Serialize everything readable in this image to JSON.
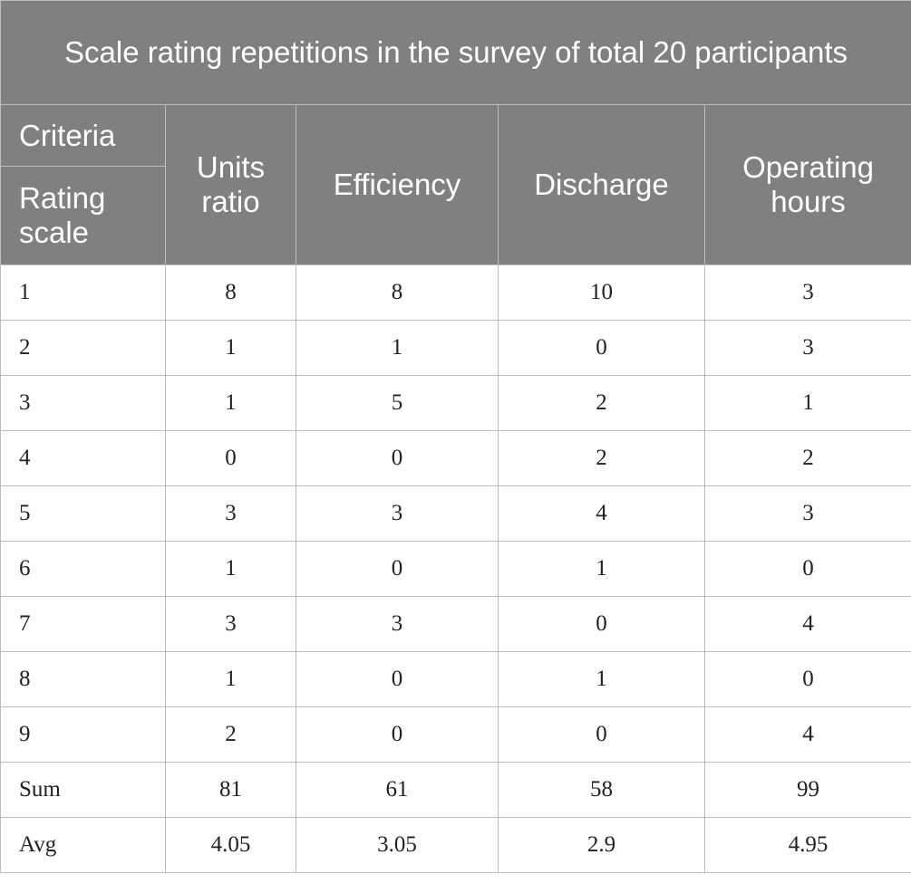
{
  "table": {
    "title": "Scale rating repetitions in the survey of total 20 participants",
    "corner_top": "Criteria",
    "corner_bottom": "Rating scale",
    "columns": [
      "Units ratio",
      "Efficiency",
      "Discharge",
      "Operating hours"
    ],
    "rows": [
      {
        "label": "1",
        "values": [
          "8",
          "8",
          "10",
          "3"
        ]
      },
      {
        "label": "2",
        "values": [
          "1",
          "1",
          "0",
          "3"
        ]
      },
      {
        "label": "3",
        "values": [
          "1",
          "5",
          "2",
          "1"
        ]
      },
      {
        "label": "4",
        "values": [
          "0",
          "0",
          "2",
          "2"
        ]
      },
      {
        "label": "5",
        "values": [
          "3",
          "3",
          "4",
          "3"
        ]
      },
      {
        "label": "6",
        "values": [
          "1",
          "0",
          "1",
          "0"
        ]
      },
      {
        "label": "7",
        "values": [
          "3",
          "3",
          "0",
          "4"
        ]
      },
      {
        "label": "8",
        "values": [
          "1",
          "0",
          "1",
          "0"
        ]
      },
      {
        "label": "9",
        "values": [
          "2",
          "0",
          "0",
          "4"
        ]
      },
      {
        "label": "Sum",
        "values": [
          "81",
          "61",
          "58",
          "99"
        ]
      },
      {
        "label": "Avg",
        "values": [
          "4.05",
          "3.05",
          "2.9",
          "4.95"
        ]
      }
    ]
  }
}
